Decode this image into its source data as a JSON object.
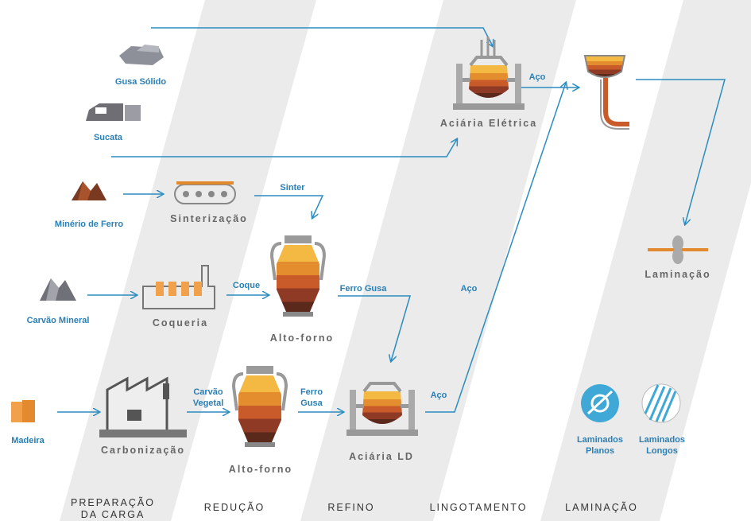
{
  "inputs": [
    "Gusa Sólido",
    "Sucata",
    "Minério de Ferro",
    "Carvão Mineral",
    "Madeira"
  ],
  "processes": [
    "Aciária Elétrica",
    "Sinterização",
    "Coqueria",
    "Alto-forno",
    "Alto-forno",
    "Carbonização",
    "Aciária LD",
    "Laminação"
  ],
  "flow_labels": [
    [
      "Aço"
    ],
    [
      "Sinter"
    ],
    [
      "Coque"
    ],
    [
      "Ferro Gusa"
    ],
    [
      "Aço"
    ],
    [
      "Carvão",
      "Vegetal"
    ],
    [
      "Ferro",
      "Gusa"
    ],
    [
      "Aço"
    ]
  ],
  "products": [
    [
      "Laminados",
      "Planos"
    ],
    [
      "Laminados",
      "Longos"
    ]
  ],
  "stages": [
    [
      "PREPARAÇÃO",
      "DA CARGA"
    ],
    [
      "REDUÇÃO"
    ],
    [
      "REFINO"
    ],
    [
      "LINGOTAMENTO"
    ],
    [
      "LAMINAÇÃO"
    ]
  ]
}
